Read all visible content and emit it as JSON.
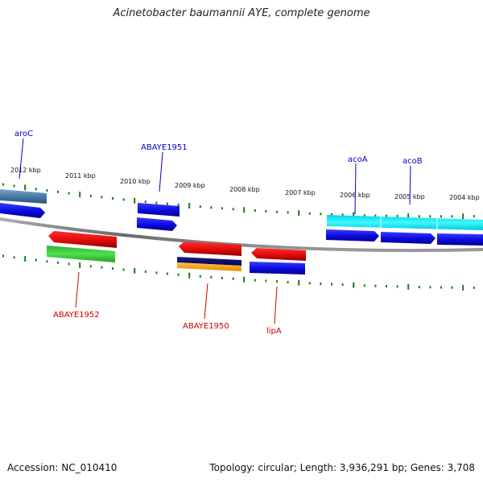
{
  "title": "Acinetobacter baumannii AYE, complete genome",
  "footer": {
    "accession": "Accession: NC_010410",
    "summary": "Topology: circular; Length: 3,936,291 bp; Genes: 3,708"
  },
  "colors": {
    "forward_label": "#0000cc",
    "reverse_label": "#cc0000",
    "backbone": "#808080",
    "tick": "#1a7a1a"
  },
  "axis": {
    "tick_labels": [
      "2012 kbp",
      "2011 kbp",
      "2010 kbp",
      "2009 kbp",
      "2008 kbp",
      "2007 kbp",
      "2006 kbp",
      "2005 kbp",
      "2004 kbp"
    ]
  },
  "genes": [
    {
      "name": "aroC",
      "strand": "forward",
      "color": "#1f1fd6"
    },
    {
      "name": "ABAYE1951",
      "strand": "forward",
      "color": "#1f1fd6"
    },
    {
      "name": "acoA",
      "strand": "forward",
      "color": "#1f1fd6"
    },
    {
      "name": "acoB",
      "strand": "forward",
      "color": "#1f1fd6"
    },
    {
      "name": "ABAYE1952",
      "strand": "reverse",
      "color": "#e81010"
    },
    {
      "name": "ABAYE1950",
      "strand": "reverse",
      "color": "#e81010"
    },
    {
      "name": "lipA",
      "strand": "reverse",
      "color": "#e81010"
    }
  ]
}
